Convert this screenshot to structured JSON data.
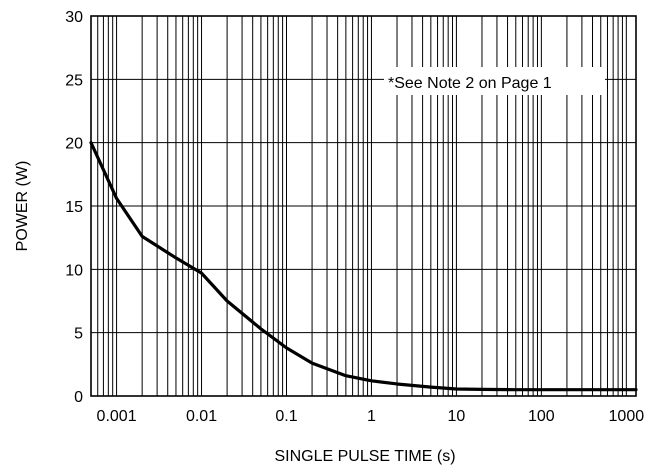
{
  "chart_data": {
    "type": "line",
    "title": "",
    "xlabel": "SINGLE PULSE TIME (s)",
    "ylabel": "POWER (W)",
    "xscale": "log",
    "xlim": [
      0.0005,
      1300
    ],
    "ylim": [
      0,
      30
    ],
    "x_ticks": [
      {
        "value": 0.001,
        "label": "0.001"
      },
      {
        "value": 0.01,
        "label": "0.01"
      },
      {
        "value": 0.1,
        "label": "0.1"
      },
      {
        "value": 1,
        "label": "1"
      },
      {
        "value": 10,
        "label": "10"
      },
      {
        "value": 100,
        "label": "100"
      },
      {
        "value": 1000,
        "label": "1000"
      }
    ],
    "y_ticks": [
      {
        "value": 0,
        "label": "0"
      },
      {
        "value": 5,
        "label": "5"
      },
      {
        "value": 10,
        "label": "10"
      },
      {
        "value": 15,
        "label": "15"
      },
      {
        "value": 20,
        "label": "20"
      },
      {
        "value": 25,
        "label": "25"
      },
      {
        "value": 30,
        "label": "30"
      }
    ],
    "grid": true,
    "annotation": "*See Note 2 on Page 1",
    "series": [
      {
        "x": [
          0.0005,
          0.001,
          0.002,
          0.005,
          0.01,
          0.02,
          0.05,
          0.1,
          0.2,
          0.5,
          1,
          2,
          5,
          10,
          20,
          50,
          100,
          200,
          500,
          1000,
          1300
        ],
        "y": [
          20,
          15.6,
          12.6,
          10.9,
          9.7,
          7.5,
          5.3,
          3.8,
          2.6,
          1.6,
          1.2,
          0.95,
          0.7,
          0.55,
          0.52,
          0.5,
          0.5,
          0.5,
          0.5,
          0.5,
          0.5
        ]
      }
    ]
  },
  "colors": {
    "background": "#ffffff",
    "grid": "#000000",
    "curve": "#000000",
    "text": "#000000"
  }
}
